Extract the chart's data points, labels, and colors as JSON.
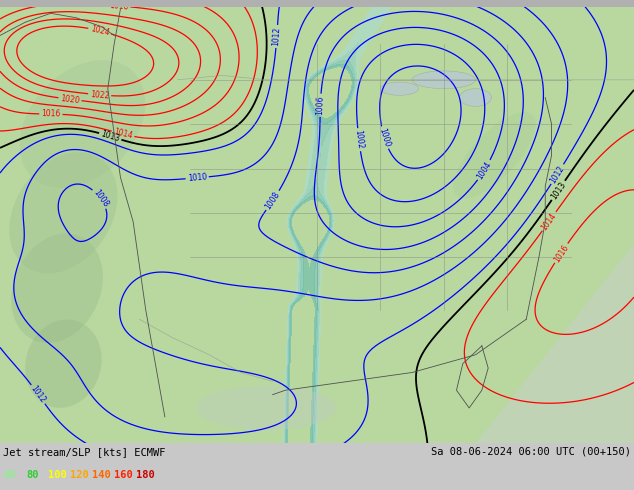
{
  "title_left": "Jet stream/SLP [kts] ECMWF",
  "title_right": "Sa 08-06-2024 06:00 UTC (00+150)",
  "legend_values": [
    60,
    80,
    100,
    120,
    140,
    160,
    180
  ],
  "legend_colors": [
    "#90ee90",
    "#32cd32",
    "#ffff00",
    "#ffa500",
    "#ff6600",
    "#ff2200",
    "#cc0000"
  ],
  "bg_color_land": "#b8d8a0",
  "bg_color_ocean": "#d0d8d0",
  "jet_teal": "#80c8c0",
  "contour_color_high": "#ff0000",
  "contour_color_low": "#0000ff",
  "contour_color_black": "#000000",
  "font_family": "monospace",
  "fig_width": 6.34,
  "fig_height": 4.9,
  "dpi": 100,
  "bottom_bar_color": "#c8c8c8",
  "border_color": "#b0b0b0"
}
